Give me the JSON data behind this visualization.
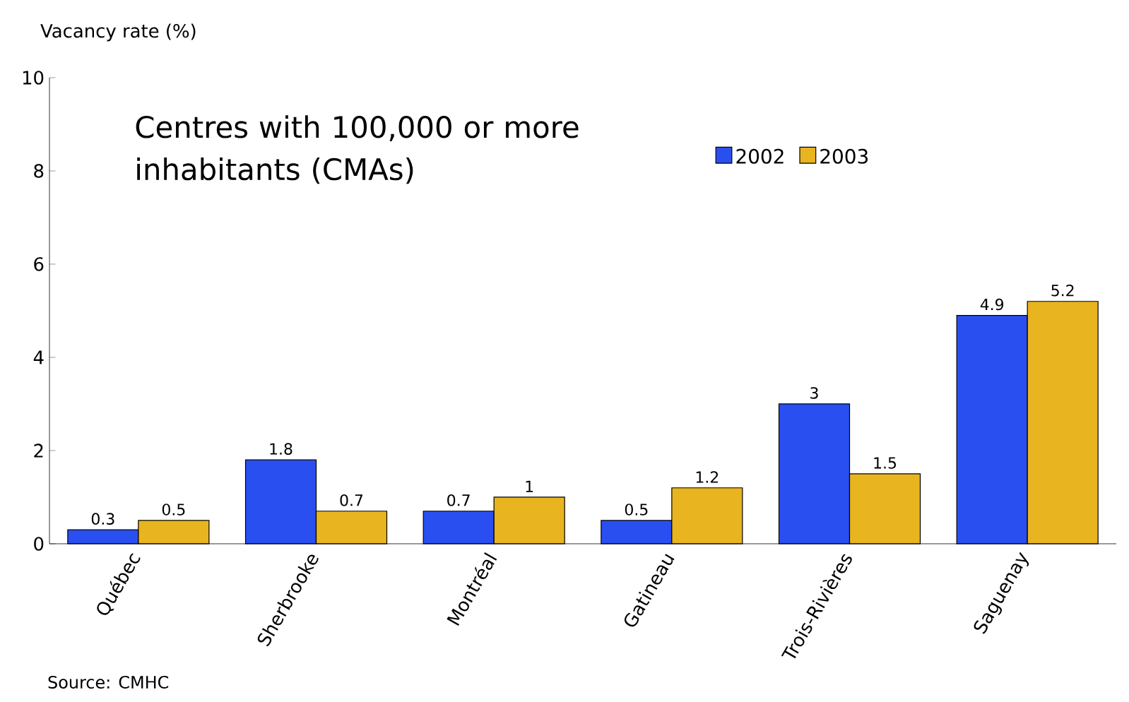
{
  "chart_data": {
    "type": "bar",
    "title": "Centres with 100,000 or more inhabitants (CMAs)",
    "ylabel": "Vacancy rate (%)",
    "categories": [
      "Québec",
      "Sherbrooke",
      "Montréal",
      "Gatineau",
      "Trois-Rivières",
      "Saguenay"
    ],
    "series": [
      {
        "name": "2002",
        "color": "#2a4ff0",
        "values": [
          0.3,
          1.8,
          0.7,
          0.5,
          3,
          4.9
        ]
      },
      {
        "name": "2003",
        "color": "#e8b420",
        "values": [
          0.5,
          0.7,
          1,
          1.2,
          1.5,
          5.2
        ]
      }
    ],
    "ylim": [
      0,
      10
    ],
    "yticks": [
      0,
      2,
      4,
      6,
      8,
      10
    ],
    "data_labels": true,
    "grid": false,
    "legend": "top right",
    "annotations": [
      "Source: CMHC"
    ]
  }
}
